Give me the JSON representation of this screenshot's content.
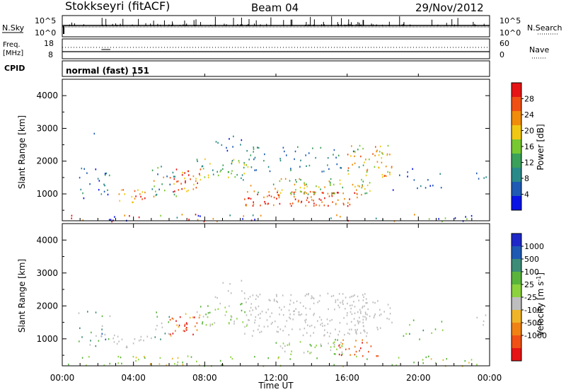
{
  "header": {
    "station": "Stokkseyri (fitACF)",
    "beam": "Beam 04",
    "date": "29/Nov/2012"
  },
  "nsky_panel": {
    "left_label": "N.Sky",
    "right_label": "N.Search",
    "ticks_left": [
      "10^5",
      "10^0"
    ],
    "ticks_right": [
      "10^5",
      "10^0"
    ]
  },
  "freq_panel": {
    "left_label_1": "Freq.",
    "left_label_2": "[MHz]",
    "right_label": "Nave",
    "ticks_left": [
      "18",
      "8"
    ],
    "ticks_right": [
      "60",
      "0"
    ]
  },
  "cpid": {
    "label": "CPID",
    "value": "normal (fast) 151"
  },
  "chart_data": [
    {
      "type": "heatmap",
      "quantity": "Power",
      "ylabel": "Slant Range [km]",
      "ylim": [
        180,
        4500
      ],
      "yticks": [
        1000,
        2000,
        3000,
        4000
      ],
      "xlim_hours": [
        0,
        24
      ],
      "colorbar": {
        "label": "Power [dB]",
        "ticks": [
          "4",
          "8",
          "12",
          "16",
          "20",
          "24",
          "28"
        ],
        "colors": [
          "#0a14e6",
          "#1f5ab4",
          "#2a8a8a",
          "#3aa05a",
          "#78c832",
          "#f0c814",
          "#f08c0a",
          "#f05014",
          "#e61414"
        ]
      }
    },
    {
      "type": "heatmap",
      "quantity": "Velocity",
      "ylabel": "Slant Range [km]",
      "ylim": [
        180,
        4500
      ],
      "yticks": [
        1000,
        2000,
        3000,
        4000
      ],
      "xlim_hours": [
        0,
        24
      ],
      "colorbar": {
        "label": "Velocity [m s^-1]",
        "ticks": [
          "1000",
          "500",
          "100",
          "25",
          "-25",
          "-100",
          "-500",
          "-1000"
        ],
        "colors": [
          "#1e28c8",
          "#1e5ab4",
          "#3c8c78",
          "#5ab43c",
          "#8cd23c",
          "#bebebe",
          "#f0b428",
          "#f08214",
          "#f05014",
          "#e61414"
        ]
      }
    }
  ],
  "xaxis": {
    "label": "Time UT",
    "ticks": [
      "00:00",
      "04:00",
      "08:00",
      "12:00",
      "16:00",
      "20:00",
      "00:00"
    ]
  }
}
